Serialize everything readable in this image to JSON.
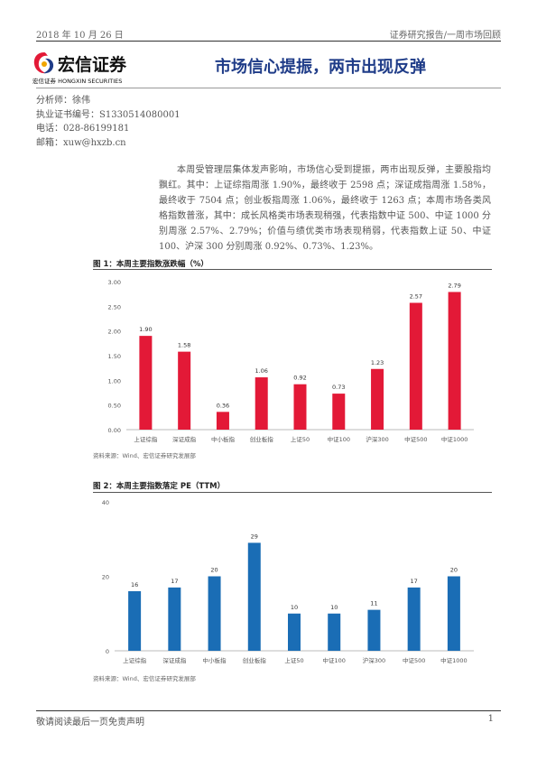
{
  "header": {
    "date": "2018 年 10 月 26 日",
    "report_type": "证券研究报告/一周市场回顾"
  },
  "logo": {
    "name_cn": "宏信证券",
    "name_en": "宏信证券 HONGXIN SECURITIES"
  },
  "title": "市场信心提振，两市出现反弹",
  "analyst": {
    "name_line": "分析师：徐伟",
    "license_line": "执业证书编号：S1330514080001",
    "phone_line": "电话：028-86199181",
    "email_line": "邮箱：xuw@hxzb.cn"
  },
  "summary": "本周受管理层集体发声影响，市场信心受到提振，两市出现反弹，主要股指均飘红。其中：上证综指周涨 1.90%，最终收于 2598 点；深证成指周涨 1.58%，最终收于 7504 点；创业板指周涨 1.06%，最终收于 1263 点；本周市场各类风格指数普涨，其中：成长风格类市场表现稍强，代表指数中证 500、中证 1000 分别周涨 2.57%、2.79%；价值与绩优类市场表现稍弱，代表指数上证 50、中证 100、沪深 300 分别周涨 0.92%、0.73%、1.23%。",
  "colors": {
    "bar_red": "#e31937",
    "bar_blue": "#1a6db5",
    "title_blue": "#1f3c88"
  },
  "chart_data": [
    {
      "type": "bar",
      "title": "图 1：本周主要指数涨跌幅（%）",
      "categories": [
        "上证综指",
        "深证成指",
        "中小板指",
        "创业板指",
        "上证50",
        "中证100",
        "沪深300",
        "中证500",
        "中证1000"
      ],
      "values": [
        1.9,
        1.58,
        0.36,
        1.06,
        0.92,
        0.73,
        1.23,
        2.57,
        2.79
      ],
      "value_labels": [
        "1.90",
        "1.58",
        "0.36",
        "1.06",
        "0.92",
        "0.73",
        "1.23",
        "2.57",
        "2.79"
      ],
      "ylim": [
        0,
        3.0
      ],
      "yticks": [
        "0.00",
        "0.50",
        "1.00",
        "1.50",
        "2.00",
        "2.50",
        "3.00"
      ],
      "ytick_values": [
        0,
        0.5,
        1.0,
        1.5,
        2.0,
        2.5,
        3.0
      ],
      "source": "资料来源：Wind、宏信证券研究发展部"
    },
    {
      "type": "bar",
      "title": "图 2：本周主要指数落定 PE（TTM）",
      "categories": [
        "上证综指",
        "深证成指",
        "中小板指",
        "创业板指",
        "上证50",
        "中证100",
        "沪深300",
        "中证500",
        "中证1000"
      ],
      "values": [
        16,
        17,
        20,
        29,
        10,
        10,
        11,
        17,
        20
      ],
      "value_labels": [
        "16",
        "17",
        "20",
        "29",
        "10",
        "10",
        "11",
        "17",
        "20"
      ],
      "ylim": [
        0,
        40
      ],
      "yticks": [
        "0",
        "20",
        "40"
      ],
      "ytick_values": [
        0,
        20,
        40
      ],
      "source": "资料来源：Wind、宏信证券研究发展部"
    }
  ],
  "footer": {
    "disclaimer": "敬请阅读最后一页免责声明",
    "page_number": "1"
  }
}
